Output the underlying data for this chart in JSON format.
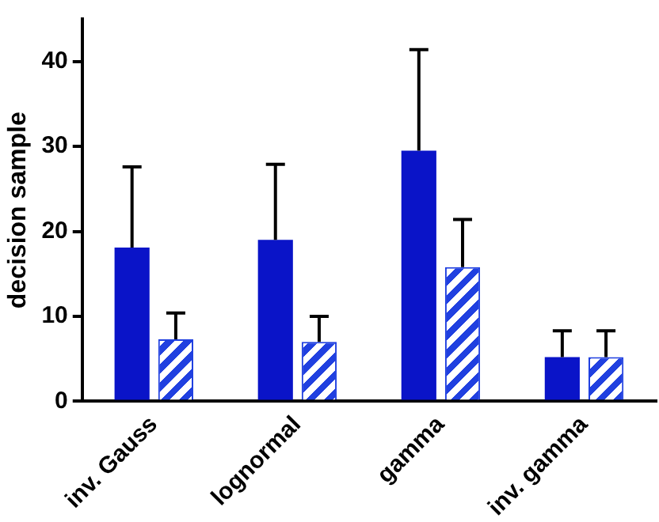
{
  "chart_data": {
    "type": "bar",
    "ylabel": "decision sample",
    "categories": [
      "inv. Gauss",
      "lognormal",
      "gamma",
      "inv. gamma"
    ],
    "series": [
      {
        "color": "#0a14c8",
        "values": [
          18.1,
          19.0,
          29.5,
          5.2
        ],
        "errors": [
          [
            18.1,
            27.6
          ],
          [
            19.0,
            27.9
          ],
          [
            29.5,
            41.4
          ],
          [
            5.2,
            8.3
          ]
        ]
      },
      {
        "color": "#2040e0",
        "values": [
          7.3,
          7.0,
          15.8,
          5.2
        ],
        "errors": [
          [
            7.3,
            10.4
          ],
          [
            7.0,
            10.0
          ],
          [
            15.8,
            21.4
          ],
          [
            5.2,
            8.3
          ]
        ]
      }
    ],
    "ylim": [
      0,
      45
    ],
    "yticks": [
      0,
      10,
      20,
      30,
      40
    ],
    "grid": false,
    "legend": false
  }
}
